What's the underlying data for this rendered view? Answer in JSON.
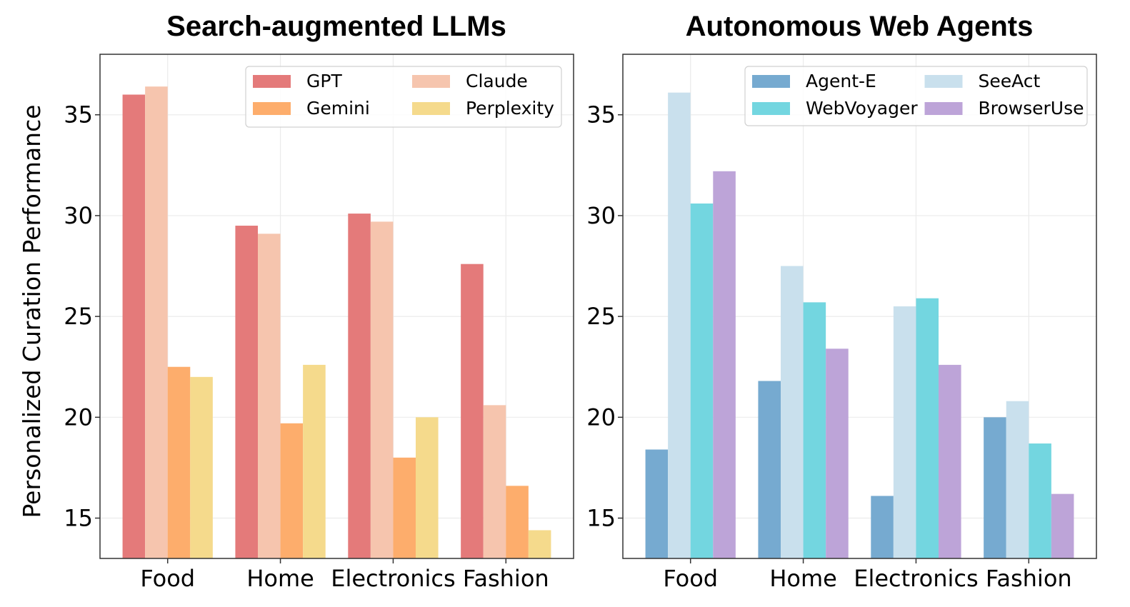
{
  "figure": {
    "ylabel": "Personalized Curation Performance"
  },
  "chart_data": [
    {
      "type": "bar",
      "title": "Search-augmented LLMs",
      "xlabel": "",
      "ylabel": "Personalized Curation Performance",
      "categories": [
        "Food",
        "Home",
        "Electronics",
        "Fashion"
      ],
      "ylim": [
        13,
        38
      ],
      "yticks": [
        15,
        20,
        25,
        30,
        35
      ],
      "grid": true,
      "legend_position": "top-right",
      "series": [
        {
          "name": "GPT",
          "color": "#e47a7a",
          "values": [
            36.0,
            29.5,
            30.1,
            27.6
          ]
        },
        {
          "name": "Claude",
          "color": "#f6c5ae",
          "values": [
            36.4,
            29.1,
            29.7,
            20.6
          ]
        },
        {
          "name": "Gemini",
          "color": "#fdad6c",
          "values": [
            22.5,
            19.7,
            18.0,
            16.6
          ]
        },
        {
          "name": "Perplexity",
          "color": "#f5da8c",
          "values": [
            22.0,
            22.6,
            20.0,
            14.4
          ]
        }
      ]
    },
    {
      "type": "bar",
      "title": "Autonomous Web Agents",
      "xlabel": "",
      "ylabel": "",
      "categories": [
        "Food",
        "Home",
        "Electronics",
        "Fashion"
      ],
      "ylim": [
        13,
        38
      ],
      "yticks": [
        15,
        20,
        25,
        30,
        35
      ],
      "grid": true,
      "legend_position": "top-right",
      "series": [
        {
          "name": "Agent-E",
          "color": "#76aad0",
          "values": [
            18.4,
            21.8,
            16.1,
            20.0
          ]
        },
        {
          "name": "SeeAct",
          "color": "#c9e0ed",
          "values": [
            36.1,
            27.5,
            25.5,
            20.8
          ]
        },
        {
          "name": "WebVoyager",
          "color": "#73d6e0",
          "values": [
            30.6,
            25.7,
            25.9,
            18.7
          ]
        },
        {
          "name": "BrowserUse",
          "color": "#bda4d8",
          "values": [
            32.2,
            23.4,
            22.6,
            16.2
          ]
        }
      ]
    }
  ]
}
